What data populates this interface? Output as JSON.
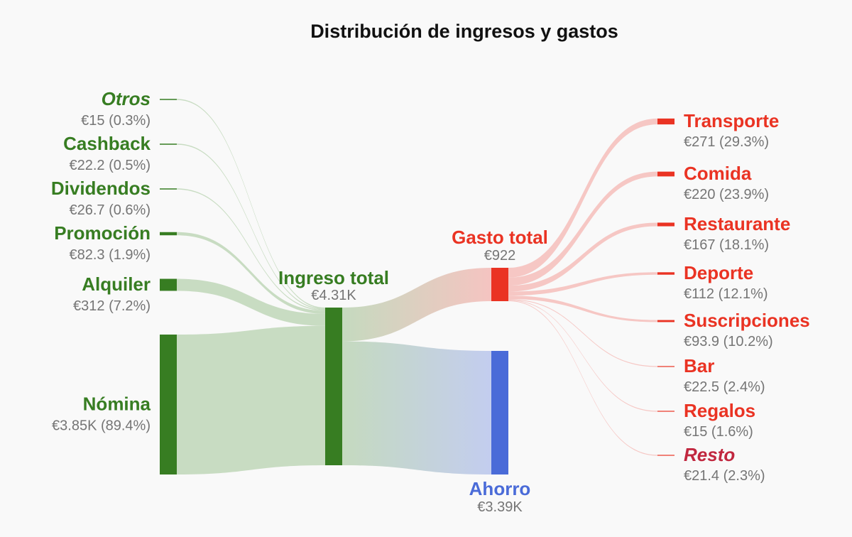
{
  "chart_data": {
    "type": "sankey",
    "title": "Distribución de ingresos y gastos",
    "colors": {
      "income": "#377d22",
      "income_link": "#c5dabf",
      "expense": "#ea3323",
      "expense_link": "#f5c4c1",
      "expense_label_italic": "#c1273f",
      "savings": "#4a6bd8",
      "savings_link": "#c3cdef"
    },
    "income_sources": [
      {
        "name": "Otros",
        "amount": 15,
        "value_label": "€15 (0.3%)",
        "italic": true
      },
      {
        "name": "Cashback",
        "amount": 22.2,
        "value_label": "€22.2 (0.5%)"
      },
      {
        "name": "Dividendos",
        "amount": 26.7,
        "value_label": "€26.7 (0.6%)"
      },
      {
        "name": "Promoción",
        "amount": 82.3,
        "value_label": "€82.3 (1.9%)"
      },
      {
        "name": "Alquiler",
        "amount": 312,
        "value_label": "€312 (7.2%)"
      },
      {
        "name": "Nómina",
        "amount": 3850,
        "value_label": "€3.85K (89.4%)"
      }
    ],
    "total_income": {
      "name": "Ingreso total",
      "amount": 4310,
      "value_label": "€4.31K"
    },
    "total_expense": {
      "name": "Gasto total",
      "amount": 922,
      "value_label": "€922"
    },
    "savings": {
      "name": "Ahorro",
      "amount": 3390,
      "value_label": "€3.39K"
    },
    "expense_categories": [
      {
        "name": "Transporte",
        "amount": 271,
        "value_label": "€271 (29.3%)"
      },
      {
        "name": "Comida",
        "amount": 220,
        "value_label": "€220 (23.9%)"
      },
      {
        "name": "Restaurante",
        "amount": 167,
        "value_label": "€167 (18.1%)"
      },
      {
        "name": "Deporte",
        "amount": 112,
        "value_label": "€112 (12.1%)"
      },
      {
        "name": "Suscripciones",
        "amount": 93.9,
        "value_label": "€93.9 (10.2%)"
      },
      {
        "name": "Bar",
        "amount": 22.5,
        "value_label": "€22.5 (2.4%)"
      },
      {
        "name": "Regalos",
        "amount": 15,
        "value_label": "€15 (1.6%)"
      },
      {
        "name": "Resto",
        "amount": 21.4,
        "value_label": "€21.4 (2.3%)",
        "italic": true
      }
    ]
  }
}
